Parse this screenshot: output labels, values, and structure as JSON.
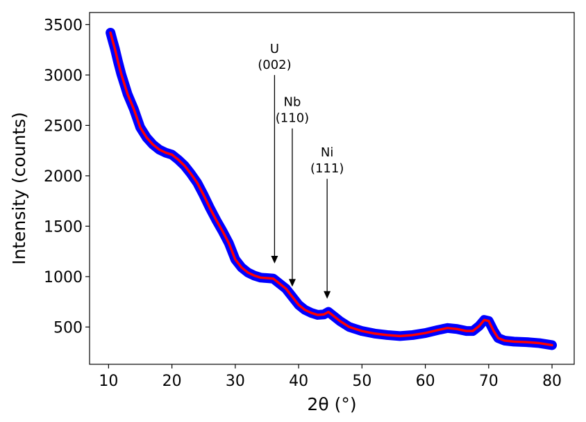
{
  "chart_data": {
    "type": "scatter",
    "xlabel": "2θ (°)",
    "ylabel": "Intensity (counts)",
    "xlim": [
      7,
      83.5
    ],
    "ylim": [
      130,
      3620
    ],
    "xticks": [
      10,
      20,
      30,
      40,
      50,
      60,
      70,
      80
    ],
    "yticks": [
      500,
      1000,
      1500,
      2000,
      2500,
      3000,
      3500
    ],
    "grid": false,
    "series": [
      {
        "style": "scatter",
        "color": "#0000ff",
        "x": [
          10.3,
          10.6,
          11.0,
          11.5,
          12.0,
          13.0,
          14.0,
          15.0,
          16.0,
          17.0,
          18.0,
          19.0,
          20.0,
          21.0,
          22.0,
          23.0,
          24.0,
          25.0,
          26.0,
          27.0,
          28.0,
          29.0,
          30.0,
          31.0,
          32.0,
          33.0,
          34.0,
          35.0,
          36.0,
          37.0,
          38.0,
          39.0,
          40.0,
          41.0,
          42.0,
          43.0,
          44.0,
          44.7,
          45.5,
          46.5,
          48.0,
          50.0,
          52.0,
          54.0,
          56.0,
          58.0,
          60.0,
          62.0,
          63.5,
          65.0,
          66.5,
          67.5,
          68.5,
          69.3,
          70.0,
          70.8,
          71.5,
          72.5,
          74.0,
          76.0,
          78.0,
          80.0
        ],
        "y": [
          3420,
          3350,
          3260,
          3130,
          3010,
          2810,
          2660,
          2480,
          2380,
          2310,
          2260,
          2230,
          2210,
          2160,
          2100,
          2020,
          1930,
          1810,
          1680,
          1560,
          1450,
          1330,
          1170,
          1090,
          1040,
          1010,
          990,
          985,
          980,
          930,
          880,
          800,
          720,
          670,
          640,
          620,
          625,
          650,
          610,
          560,
          500,
          460,
          435,
          420,
          410,
          420,
          440,
          470,
          490,
          480,
          460,
          460,
          510,
          570,
          560,
          460,
          390,
          365,
          355,
          350,
          340,
          320
        ]
      },
      {
        "style": "line",
        "color": "#ff0000",
        "x": [
          10.3,
          10.6,
          11.0,
          11.5,
          12.0,
          13.0,
          14.0,
          15.0,
          16.0,
          17.0,
          18.0,
          19.0,
          20.0,
          21.0,
          22.0,
          23.0,
          24.0,
          25.0,
          26.0,
          27.0,
          28.0,
          29.0,
          30.0,
          31.0,
          32.0,
          33.0,
          34.0,
          35.0,
          36.0,
          37.0,
          38.0,
          39.0,
          40.0,
          41.0,
          42.0,
          43.0,
          44.0,
          44.7,
          45.5,
          46.5,
          48.0,
          50.0,
          52.0,
          54.0,
          56.0,
          58.0,
          60.0,
          62.0,
          63.5,
          65.0,
          66.5,
          67.5,
          68.5,
          69.3,
          70.0,
          70.8,
          71.5,
          72.5,
          74.0,
          76.0,
          78.0,
          80.0
        ],
        "y": [
          3420,
          3350,
          3260,
          3130,
          3010,
          2810,
          2660,
          2480,
          2380,
          2310,
          2260,
          2230,
          2210,
          2160,
          2100,
          2020,
          1930,
          1810,
          1680,
          1560,
          1450,
          1330,
          1170,
          1090,
          1040,
          1010,
          990,
          985,
          980,
          930,
          880,
          800,
          720,
          670,
          640,
          620,
          625,
          650,
          610,
          560,
          500,
          460,
          435,
          420,
          410,
          420,
          440,
          470,
          490,
          480,
          460,
          460,
          510,
          570,
          560,
          460,
          390,
          365,
          355,
          350,
          340,
          320
        ]
      }
    ],
    "annotations": [
      {
        "line1": "U",
        "line2": "(002)",
        "x": 36.2,
        "y_top": 3000,
        "y_tip": 1130
      },
      {
        "line1": "Nb",
        "line2": "(110)",
        "x": 39.0,
        "y_top": 2470,
        "y_tip": 900
      },
      {
        "line1": "Ni",
        "line2": "(111)",
        "x": 44.5,
        "y_top": 1970,
        "y_tip": 780
      }
    ]
  }
}
